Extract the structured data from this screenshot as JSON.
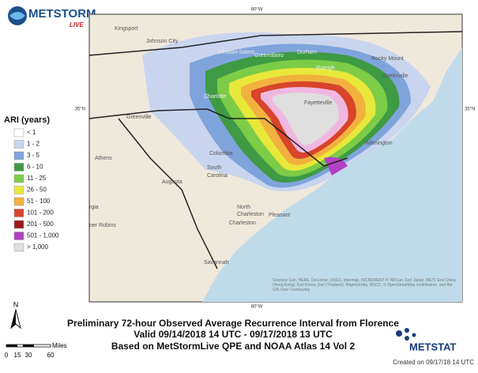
{
  "logo": {
    "name": "METSTORM",
    "sub": "LIVE"
  },
  "map": {
    "coords": {
      "top": "80°W",
      "left": "35°N",
      "right": "35°N",
      "bottom": "80°W"
    },
    "cities": [
      "Kingsport",
      "Johnson City",
      "Winston-Salem",
      "Greensboro",
      "Durham",
      "Rocky Mount",
      "Raleigh",
      "Greenville",
      "Charlotte",
      "Fayetteville",
      "Wilmington",
      "Greenville",
      "Columbia",
      "South",
      "Carolina",
      "Athens",
      "Augusta",
      "North",
      "Charleston",
      "Charleston",
      "Pleasant",
      "Savannah",
      "rgia",
      "ner Robins"
    ],
    "attribution": "Sources: Esri, HERE, DeLorme, USGS, Intermap, INCREMENT P, NRCan, Esri Japan, METI, Esri China (Hong Kong), Esri Korea, Esri (Thailand), MapmyIndia, NGCC, © OpenStreetMap contributors, and the GIS User Community"
  },
  "legend": {
    "title": "ARI (years)",
    "items": [
      {
        "label": "< 1",
        "color": "#ffffff"
      },
      {
        "label": "1 - 2",
        "color": "#c9d5ee"
      },
      {
        "label": "3 - 5",
        "color": "#7fa4dc"
      },
      {
        "label": "6 - 10",
        "color": "#3f9a44"
      },
      {
        "label": "11 - 25",
        "color": "#7ccc48"
      },
      {
        "label": "26 - 50",
        "color": "#e8e83a"
      },
      {
        "label": "51 - 100",
        "color": "#f2b13e"
      },
      {
        "label": "101 - 200",
        "color": "#d8442c"
      },
      {
        "label": "201 - 500",
        "color": "#9e1a1a"
      },
      {
        "label": "501 - 1,000",
        "color": "#b242c4"
      },
      {
        "label": "> 1,000",
        "color": "#dedede"
      }
    ]
  },
  "north": "N",
  "scale": {
    "unit": "Miles",
    "ticks": [
      "0",
      "15",
      "30",
      "60"
    ]
  },
  "caption": [
    "Preliminary 72-hour Observed Average Recurrence Interval from Florence",
    "Valid 09/14/2018 14 UTC - 09/17/2018 13 UTC",
    "Based on MetStormLive QPE and NOAA Atlas 14 Vol 2"
  ],
  "footer": {
    "brand": "METSTAT",
    "created": "Created on 09/17/18 14 UTC"
  }
}
